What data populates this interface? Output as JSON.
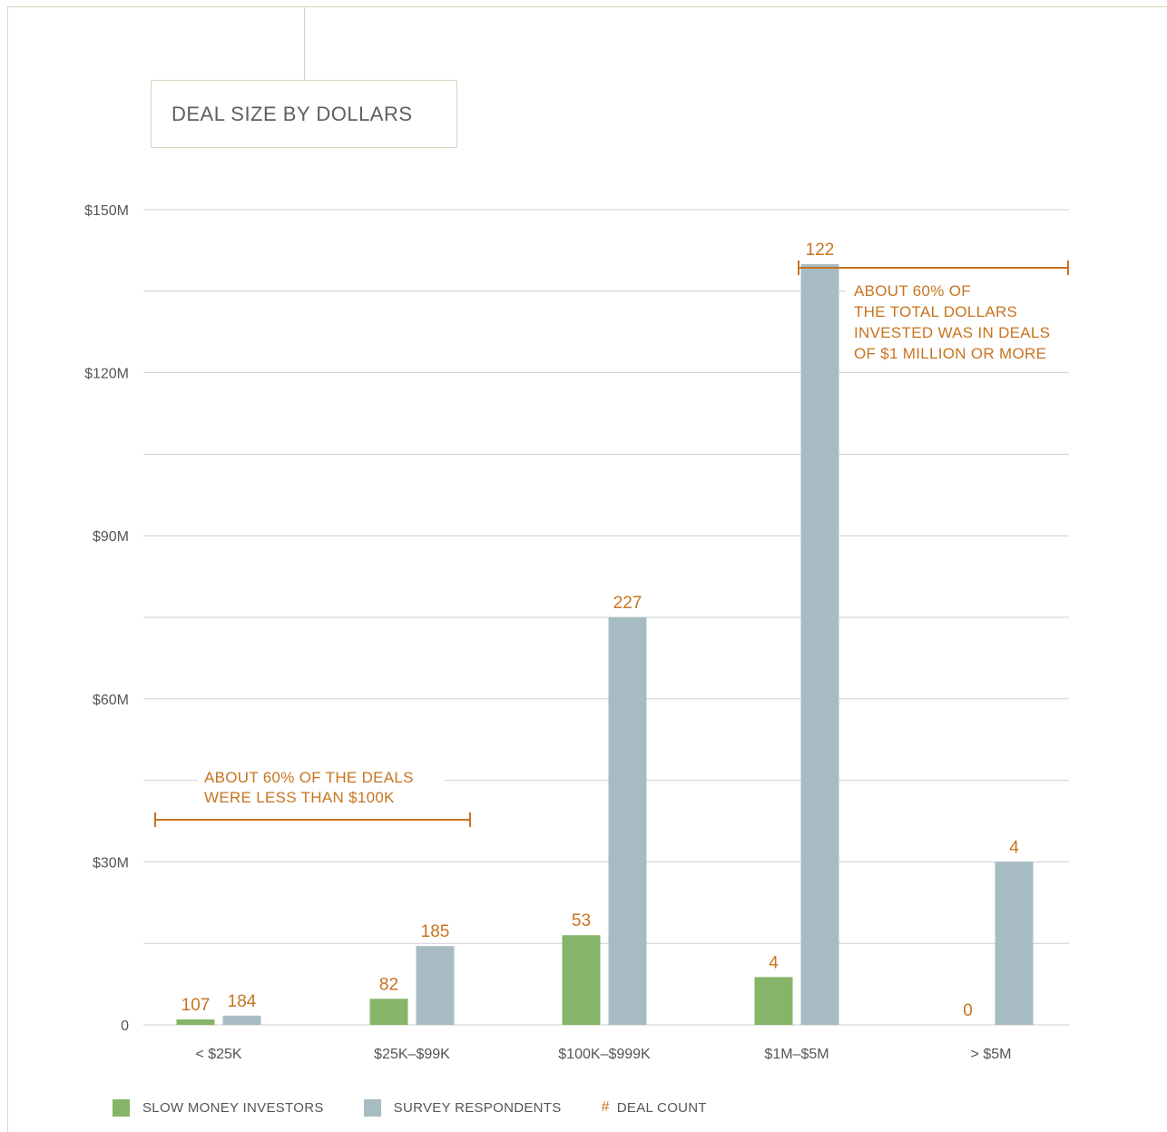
{
  "title": "DEAL SIZE BY DOLLARS",
  "colors": {
    "slow_money": "#86b56a",
    "survey": "#a7bcc2",
    "deal_count": "#c8741f",
    "grid": "#cfcfcf",
    "axis_text": "#555555"
  },
  "chart_data": {
    "type": "bar",
    "title": "DEAL SIZE BY DOLLARS",
    "xlabel": "",
    "ylabel": "",
    "categories": [
      "< $25K",
      "$25K–$99K",
      "$100K–$999K",
      "$1M–$5M",
      "> $5M"
    ],
    "ylim": [
      0,
      150
    ],
    "yticks": [
      0,
      30,
      60,
      90,
      120,
      150
    ],
    "ytick_labels": [
      "0",
      "$30M",
      "$60M",
      "$90M",
      "$120M",
      "$150M"
    ],
    "grid": true,
    "series": [
      {
        "name": "SLOW MONEY INVESTORS",
        "color": "#86b56a",
        "values": [
          1.0,
          4.8,
          16.5,
          8.8,
          0
        ],
        "deal_counts": [
          "107",
          "82",
          "53",
          "4",
          "0"
        ]
      },
      {
        "name": "SURVEY RESPONDENTS",
        "color": "#a7bcc2",
        "values": [
          1.7,
          14.5,
          75,
          140,
          30
        ],
        "deal_counts": [
          "184",
          "185",
          "227",
          "122",
          "4"
        ]
      }
    ],
    "legend": [
      "SLOW MONEY INVESTORS",
      "SURVEY RESPONDENTS",
      "DEAL COUNT"
    ],
    "legend_placement": "bottom",
    "annotations": [
      {
        "lines": [
          "ABOUT 60% OF THE DEALS",
          "WERE LESS THAN $100K"
        ]
      },
      {
        "lines": [
          "ABOUT 60% OF",
          "THE TOTAL DOLLARS",
          "INVESTED WAS IN DEALS",
          "OF $1 MILLION OR MORE"
        ]
      }
    ]
  },
  "legend": {
    "slow_money_label": "SLOW MONEY INVESTORS",
    "survey_label": "SURVEY RESPONDENTS",
    "deal_count_symbol": "#",
    "deal_count_label": "DEAL COUNT"
  }
}
